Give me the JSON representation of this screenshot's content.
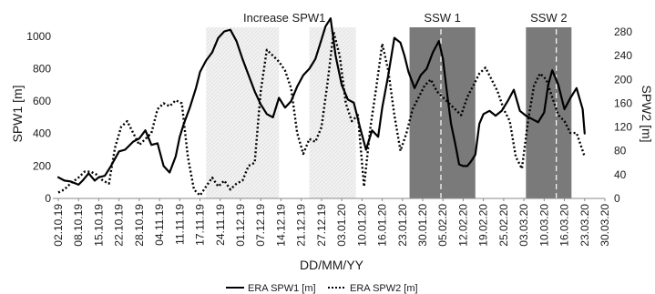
{
  "chart_data": {
    "type": "line",
    "xlabel": "DD/MM/YY",
    "ylabel": "SPW1 [m]",
    "y2label": "SPW2 [m]",
    "ylim": [
      0,
      1100
    ],
    "y2lim": [
      0,
      300
    ],
    "yticks": [
      0,
      200,
      400,
      600,
      800,
      1000
    ],
    "y2ticks": [
      0,
      40,
      80,
      120,
      160,
      200,
      240,
      280
    ],
    "categories": [
      "02.10.19",
      "08.10.19",
      "15.10.19",
      "22.10.19",
      "28.10.19",
      "04.11.19",
      "11.11.19",
      "17.11.19",
      "24.11.19",
      "01.12.19",
      "07.12.19",
      "14.12.19",
      "21.12.19",
      "27.12.19",
      "03.01.20",
      "10.01.20",
      "16.01.20",
      "23.01.20",
      "30.01.20",
      "05.02.20",
      "12.02.20",
      "19.02.20",
      "25.02.20",
      "03.03.20",
      "10.03.20",
      "16.03.20",
      "23.03.20",
      "30.03.20"
    ],
    "regions": [
      {
        "label": "Increase SPW1",
        "start": 7.3,
        "end": 10.9,
        "style": "hatch",
        "dashed_line": null
      },
      {
        "label": "",
        "start": 12.4,
        "end": 14.7,
        "style": "hatch",
        "dashed_line": null
      },
      {
        "label": "SSW 1",
        "start": 17.35,
        "end": 20.6,
        "style": "dark",
        "dashed_line": 18.9
      },
      {
        "label": "SSW 2",
        "start": 23.1,
        "end": 25.35,
        "style": "dark",
        "dashed_line": 24.6
      }
    ],
    "legend": "bottom-center",
    "series": [
      {
        "name": "ERA SPW1 [m]",
        "axis": "left",
        "style": "solid",
        "x": [
          0,
          0.3,
          0.6,
          1,
          1.2,
          1.5,
          1.8,
          2,
          2.3,
          2.6,
          3,
          3.3,
          3.7,
          4,
          4.3,
          4.6,
          4.9,
          5.2,
          5.5,
          5.8,
          6,
          6.2,
          6.5,
          6.8,
          7,
          7.3,
          7.6,
          7.9,
          8.2,
          8.5,
          8.8,
          9.1,
          9.4,
          9.7,
          10,
          10.3,
          10.6,
          10.9,
          11.2,
          11.5,
          11.8,
          12.1,
          12.4,
          12.7,
          13,
          13.2,
          13.45,
          13.7,
          14,
          14.3,
          14.6,
          14.9,
          15.2,
          15.5,
          15.8,
          16,
          16.3,
          16.6,
          16.9,
          17.1,
          17.3,
          17.6,
          17.9,
          18.2,
          18.5,
          18.8,
          19,
          19.2,
          19.4,
          19.6,
          19.8,
          20,
          20.2,
          20.4,
          20.6,
          20.8,
          21,
          21.3,
          21.6,
          21.9,
          22.2,
          22.5,
          22.8,
          23.1,
          23.4,
          23.7,
          24,
          24.2,
          24.4,
          24.7,
          25,
          25.3,
          25.6,
          25.9,
          26
        ],
        "y": [
          130,
          110,
          105,
          85,
          110,
          155,
          110,
          130,
          140,
          200,
          290,
          300,
          350,
          370,
          420,
          330,
          340,
          200,
          160,
          260,
          380,
          460,
          560,
          680,
          780,
          850,
          900,
          990,
          1030,
          1040,
          970,
          860,
          760,
          660,
          580,
          520,
          500,
          620,
          560,
          600,
          690,
          760,
          800,
          860,
          980,
          1060,
          1110,
          880,
          700,
          610,
          590,
          440,
          300,
          420,
          380,
          560,
          760,
          990,
          960,
          880,
          780,
          680,
          760,
          800,
          900,
          970,
          860,
          650,
          460,
          340,
          210,
          200,
          200,
          230,
          270,
          460,
          520,
          540,
          510,
          540,
          600,
          670,
          540,
          510,
          490,
          470,
          530,
          700,
          790,
          700,
          550,
          620,
          680,
          550,
          400
        ]
      },
      {
        "name": "ERA SPW2 [m]",
        "axis": "right",
        "style": "dotted",
        "x": [
          0,
          0.3,
          0.6,
          1,
          1.3,
          1.6,
          1.9,
          2.2,
          2.5,
          2.8,
          3.1,
          3.4,
          3.7,
          4,
          4.3,
          4.6,
          4.9,
          5.2,
          5.5,
          5.8,
          6.1,
          6.4,
          6.7,
          7,
          7.3,
          7.6,
          7.9,
          8.2,
          8.5,
          8.8,
          9.1,
          9.4,
          9.7,
          10,
          10.3,
          10.6,
          10.9,
          11.2,
          11.5,
          11.8,
          12.1,
          12.4,
          12.7,
          13,
          13.3,
          13.6,
          13.9,
          14.2,
          14.5,
          14.8,
          15.1,
          15.4,
          15.7,
          16,
          16.3,
          16.6,
          16.9,
          17.2,
          17.5,
          17.8,
          18.1,
          18.4,
          18.7,
          19,
          19.3,
          19.6,
          19.9,
          20.2,
          20.5,
          20.8,
          21.1,
          21.4,
          21.7,
          22,
          22.3,
          22.6,
          22.9,
          23.2,
          23.5,
          23.8,
          24.1,
          24.4,
          24.7,
          25,
          25.3,
          25.6,
          25.9,
          26
        ],
        "y": [
          10,
          15,
          25,
          35,
          45,
          45,
          40,
          30,
          25,
          85,
          120,
          130,
          110,
          90,
          100,
          110,
          150,
          160,
          155,
          165,
          160,
          70,
          15,
          5,
          20,
          35,
          20,
          30,
          15,
          25,
          30,
          55,
          60,
          180,
          250,
          240,
          230,
          215,
          185,
          110,
          75,
          100,
          95,
          120,
          195,
          280,
          240,
          160,
          130,
          140,
          20,
          115,
          185,
          260,
          215,
          140,
          80,
          110,
          150,
          170,
          190,
          200,
          180,
          170,
          160,
          150,
          140,
          170,
          190,
          210,
          220,
          200,
          180,
          150,
          130,
          70,
          50,
          130,
          190,
          210,
          200,
          170,
          140,
          130,
          110,
          110,
          80,
          70
        ]
      }
    ]
  }
}
